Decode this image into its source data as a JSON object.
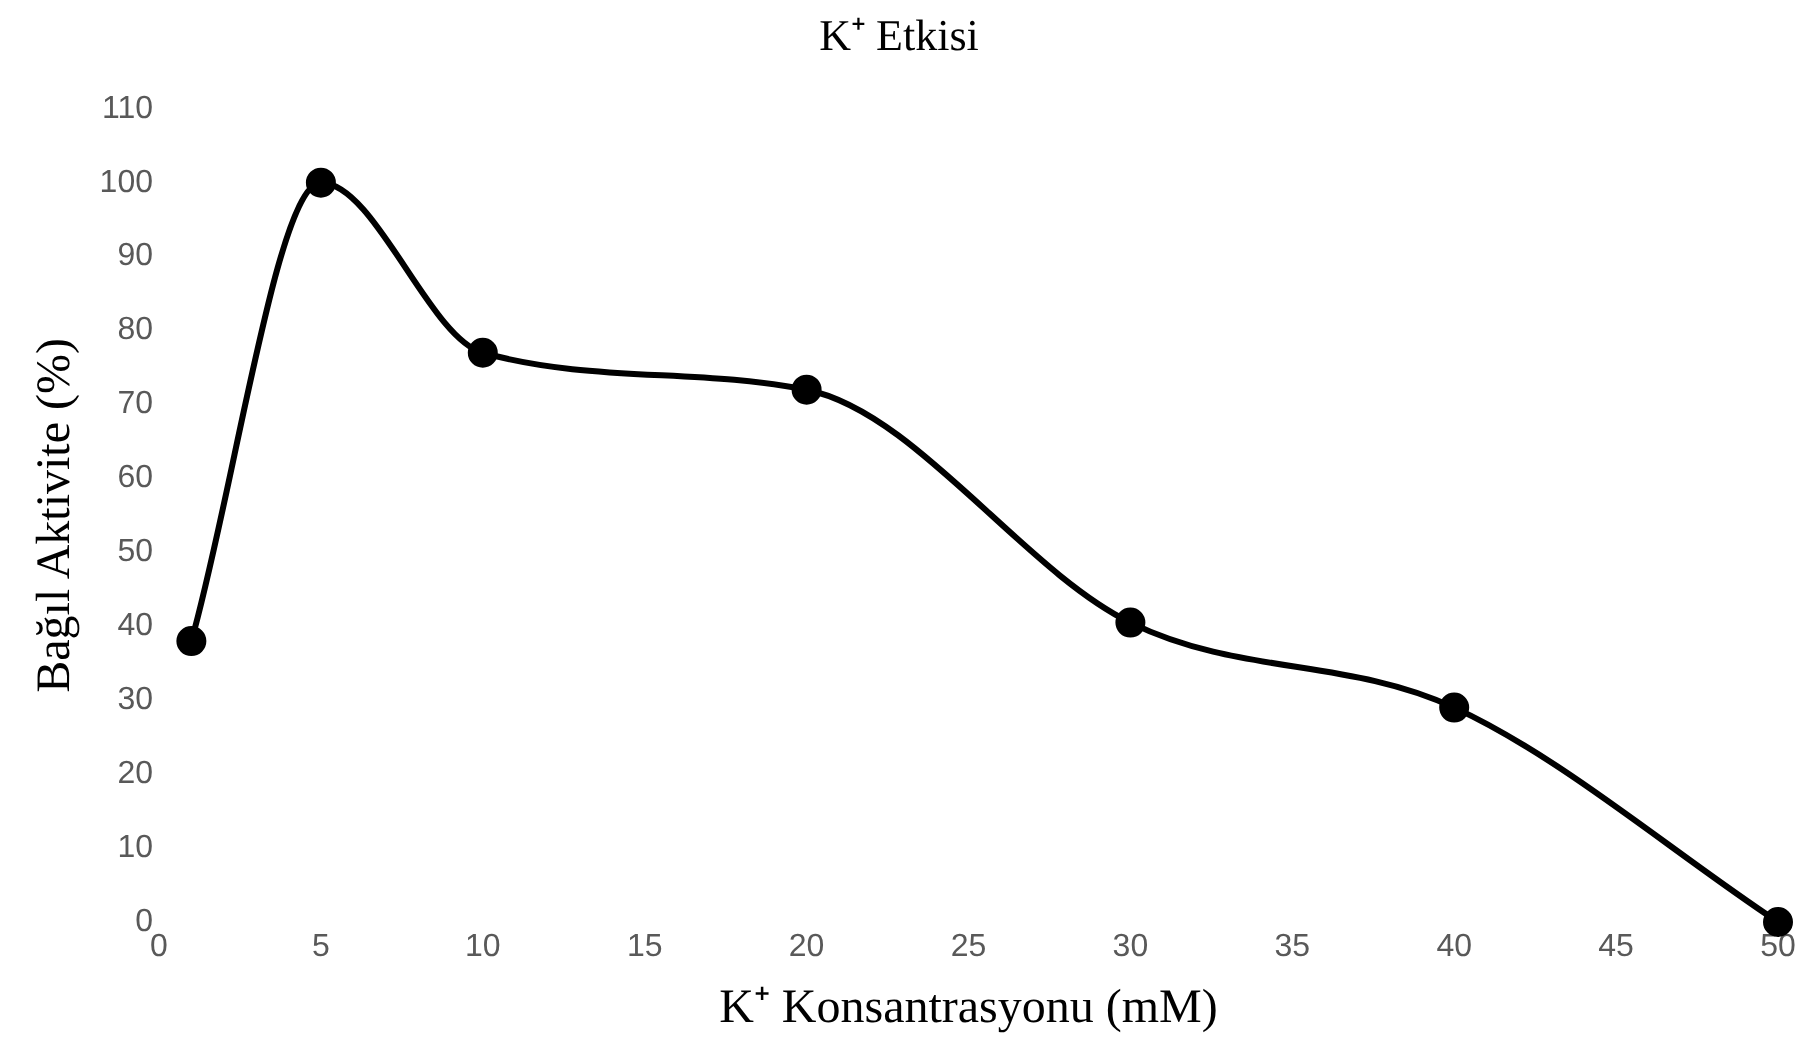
{
  "chart_data": {
    "type": "line",
    "title": "K⁺ Etkisi",
    "xlabel": "K⁺ Konsantrasyonu (mM)",
    "ylabel": "Bağıl Aktivite (%)",
    "x": [
      1,
      5,
      10,
      20,
      30,
      40,
      50
    ],
    "series": [
      {
        "color": "#000000",
        "values": [
          38,
          100,
          77,
          72,
          40.5,
          29,
          0
        ]
      }
    ],
    "xlim": [
      0,
      50
    ],
    "xticks": [
      0,
      5,
      10,
      15,
      20,
      25,
      30,
      35,
      40,
      45,
      50
    ],
    "ylim": [
      0,
      110
    ],
    "yticks": [
      0,
      10,
      20,
      30,
      40,
      50,
      60,
      70,
      80,
      90,
      100,
      110
    ],
    "grid": false,
    "legend": false,
    "marker": "circle",
    "line_style": "solid"
  }
}
